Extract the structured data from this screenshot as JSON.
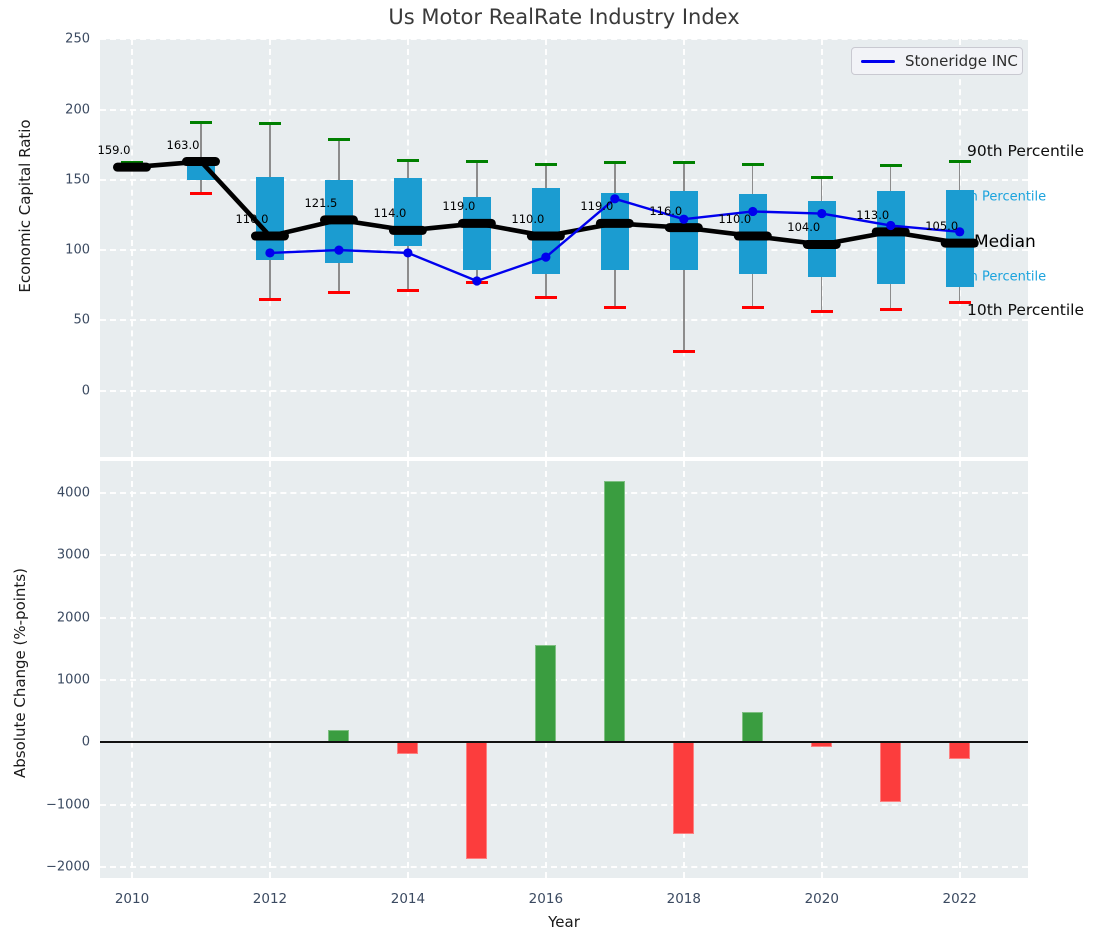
{
  "figure": {
    "title": "Us Motor RealRate Industry Index"
  },
  "chart_data": [
    {
      "type": "boxplot_line_combo",
      "title": "Us Motor RealRate Industry Index",
      "ylabel": "Economic Capital Ratio",
      "grid": true,
      "legend_position": "upper right",
      "legend": [
        {
          "label": "Stoneridge INC",
          "color": "#0000ee"
        }
      ],
      "years": [
        2010,
        2011,
        2012,
        2013,
        2014,
        2015,
        2016,
        2017,
        2018,
        2019,
        2020,
        2021,
        2022
      ],
      "yticks": [
        0,
        50,
        100,
        150,
        200,
        250
      ],
      "ytick_labels": [
        "0",
        "50",
        "100",
        "150",
        "200",
        "250"
      ],
      "ylim": [
        -47,
        250
      ],
      "boxplot": {
        "p90": [
          162,
          191,
          190,
          179,
          164,
          163,
          161,
          162,
          162,
          161,
          152,
          160,
          163
        ],
        "p75": [
          160,
          165,
          152,
          150,
          151,
          137.5,
          144,
          140.5,
          142,
          140,
          135,
          142,
          143
        ],
        "median": [
          159,
          163,
          110,
          121.5,
          114,
          119,
          110,
          119,
          116,
          110,
          104,
          113,
          105
        ],
        "p25": [
          157,
          150,
          93,
          91,
          103,
          86,
          83,
          86,
          86,
          83,
          81,
          76,
          74
        ],
        "p10": [
          157,
          140,
          65,
          70,
          71,
          77,
          66,
          59,
          28,
          59,
          56,
          58,
          63
        ]
      },
      "median_labels": [
        "159.0",
        "163.0",
        "110.0",
        "121.5",
        "114.0",
        "119.0",
        "110.0",
        "119.0",
        "116.0",
        "110.0",
        "104.0",
        "113.0",
        "105.0"
      ],
      "series": [
        {
          "name": "Stoneridge INC",
          "values": [
            null,
            null,
            98,
            100,
            98,
            78,
            95,
            136.5,
            122,
            127.5,
            126,
            117.5,
            113
          ]
        }
      ],
      "annotations": [
        {
          "text": "90th Percentile",
          "color": "#0d0d0d"
        },
        {
          "text": "75th Percentile",
          "color": "#1ba3dd"
        },
        {
          "text": "Median",
          "color": "#000000"
        },
        {
          "text": "25th Percentile",
          "color": "#1ba3dd"
        },
        {
          "text": "10th Percentile",
          "color": "#0d0d0d"
        }
      ],
      "colors": {
        "box": "#1b9cd1",
        "whisker": "#8c8c8c",
        "cap_high": "#008000",
        "cap_low": "#ff0000",
        "median_line": "#000000",
        "company_line": "#0000ee"
      }
    },
    {
      "type": "bar",
      "xlabel": "Year",
      "ylabel": "Absolute Change (%-points)",
      "grid": true,
      "years": [
        2010,
        2011,
        2012,
        2013,
        2014,
        2015,
        2016,
        2017,
        2018,
        2019,
        2020,
        2021,
        2022
      ],
      "values": [
        null,
        null,
        null,
        200,
        -180,
        -1880,
        1560,
        4200,
        -1470,
        490,
        -80,
        -960,
        -270
      ],
      "yticks": [
        -2000,
        -1000,
        0,
        1000,
        2000,
        3000,
        4000
      ],
      "ytick_labels": [
        "−2000",
        "−1000",
        "0",
        "1000",
        "2000",
        "3000",
        "4000"
      ],
      "xticks": [
        2010,
        2012,
        2014,
        2016,
        2018,
        2020,
        2022
      ],
      "xtick_labels": [
        "2010",
        "2012",
        "2014",
        "2016",
        "2018",
        "2020",
        "2022"
      ],
      "ylim": [
        -2178,
        4515
      ],
      "colors": {
        "positive": "#3a9d40",
        "negative": "#fc3d3d",
        "zero_line": "#111111"
      }
    }
  ]
}
